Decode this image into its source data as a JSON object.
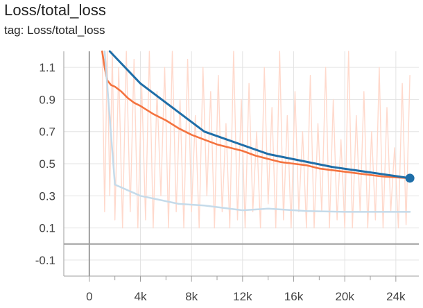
{
  "card": {
    "title": "Loss/total_loss",
    "tag": "tag: Loss/total_loss"
  },
  "chart_data": {
    "type": "line",
    "title": "Loss/total_loss",
    "subtitle": "tag: Loss/total_loss",
    "xlabel": "",
    "ylabel": "",
    "xlim": [
      -2000,
      25800
    ],
    "ylim": [
      -0.2,
      1.2
    ],
    "xticks": [
      0,
      4000,
      8000,
      12000,
      16000,
      20000,
      24000
    ],
    "xtick_labels": [
      "0",
      "4k",
      "8k",
      "12k",
      "16k",
      "20k",
      "24k"
    ],
    "yticks": [
      -0.1,
      0.1,
      0.3,
      0.5,
      0.7,
      0.9,
      1.1
    ],
    "ytick_labels": [
      "-0.1",
      "0.1",
      "0.3",
      "0.5",
      "0.7",
      "0.9",
      "1.1"
    ],
    "grid": true,
    "colors": {
      "raw": "#ffd9cc",
      "smoothed": "#f4733f",
      "blue_run": "#1f6ea8",
      "light_run": "#c5dbea",
      "axis": "#9e9e9e",
      "grid": "#e3e3e3"
    },
    "series": [
      {
        "role": "raw-noisy",
        "x": [
          1000,
          1200,
          1400,
          1600,
          1800,
          2000,
          2300,
          2600,
          2900,
          3200,
          3500,
          3800,
          4100,
          4400,
          4700,
          5000,
          5300,
          5600,
          5900,
          6200,
          6500,
          6800,
          7100,
          7400,
          7700,
          8000,
          8300,
          8600,
          8900,
          9200,
          9500,
          9800,
          10100,
          10400,
          10700,
          11000,
          11300,
          11600,
          11900,
          12200,
          12500,
          12800,
          13100,
          13400,
          13700,
          14000,
          14300,
          14600,
          14900,
          15200,
          15500,
          15800,
          16100,
          16400,
          16700,
          17000,
          17300,
          17600,
          17900,
          18200,
          18500,
          18800,
          19100,
          19400,
          19700,
          20000,
          20300,
          20600,
          20900,
          21200,
          21500,
          21800,
          22100,
          22400,
          22700,
          23000,
          23300,
          23600,
          23900,
          24200,
          24500,
          24800,
          25100
        ],
        "y": [
          1.2,
          0.2,
          1.2,
          0.3,
          1.2,
          0.15,
          1.1,
          0.1,
          1.2,
          0.2,
          1.15,
          0.1,
          1.0,
          0.15,
          1.2,
          0.1,
          0.95,
          0.3,
          1.1,
          0.1,
          1.2,
          0.2,
          0.9,
          0.1,
          1.15,
          0.2,
          0.8,
          0.1,
          1.1,
          0.3,
          0.95,
          0.1,
          1.05,
          0.2,
          0.75,
          0.1,
          1.2,
          0.15,
          0.9,
          0.1,
          1.0,
          0.2,
          0.7,
          0.1,
          1.1,
          0.25,
          0.85,
          0.1,
          1.2,
          0.15,
          0.8,
          0.1,
          0.95,
          0.2,
          0.7,
          0.1,
          1.05,
          0.1,
          0.75,
          0.2,
          1.1,
          0.1,
          0.9,
          0.15,
          0.65,
          0.1,
          1.2,
          0.1,
          0.8,
          0.2,
          0.95,
          0.1,
          0.7,
          0.15,
          1.1,
          0.1,
          0.85,
          0.2,
          0.6,
          0.1,
          1.0,
          0.12,
          1.05
        ]
      },
      {
        "role": "smoothed",
        "x": [
          1000,
          1200,
          1400,
          1700,
          2000,
          2500,
          3000,
          3500,
          4000,
          5000,
          6000,
          7000,
          8000,
          9000,
          10000,
          11000,
          12000,
          13000,
          14000,
          15000,
          16000,
          17000,
          18000,
          19000,
          20000,
          21000,
          22000,
          23000,
          24000,
          25100
        ],
        "y": [
          1.2,
          1.1,
          1.02,
          0.99,
          0.98,
          0.95,
          0.91,
          0.88,
          0.86,
          0.81,
          0.77,
          0.72,
          0.68,
          0.65,
          0.62,
          0.6,
          0.58,
          0.55,
          0.53,
          0.51,
          0.5,
          0.49,
          0.47,
          0.46,
          0.45,
          0.44,
          0.43,
          0.42,
          0.415,
          0.41
        ]
      },
      {
        "role": "blue-run",
        "x": [
          1600,
          4000,
          9000,
          14000,
          19000,
          25100
        ],
        "y": [
          1.2,
          1.0,
          0.7,
          0.56,
          0.48,
          0.41
        ]
      },
      {
        "role": "light-run",
        "x": [
          1200,
          2000,
          4000,
          7000,
          9000,
          12000,
          14000,
          17000,
          20000,
          25100
        ],
        "y": [
          1.2,
          0.37,
          0.3,
          0.25,
          0.24,
          0.21,
          0.22,
          0.205,
          0.2,
          0.2
        ]
      }
    ]
  }
}
